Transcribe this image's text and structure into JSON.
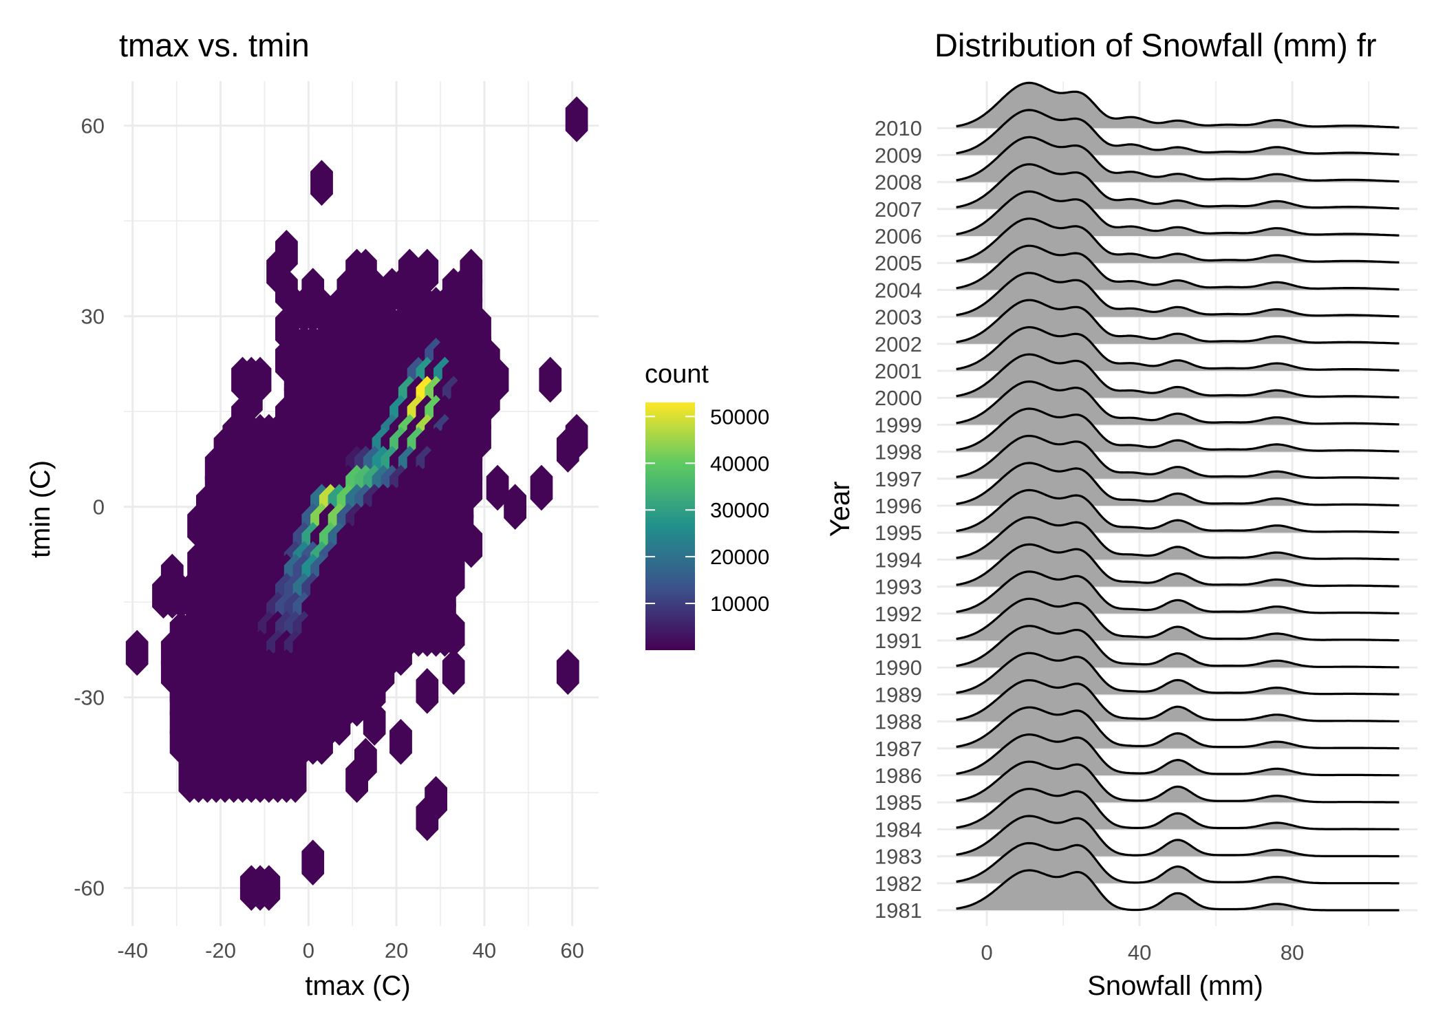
{
  "colors": {
    "background": "#ffffff",
    "grid": "#ebebeb",
    "ridge_fill": "#a6a6a6",
    "ridge_line": "#000000",
    "viridis": [
      "#440154",
      "#3b528b",
      "#21908d",
      "#5dc962",
      "#fde725"
    ]
  },
  "chart_data": [
    {
      "type": "hexbin",
      "title": "tmax vs. tmin",
      "xlabel": "tmax (C)",
      "ylabel": "tmin (C)",
      "xlim": [
        -42,
        66
      ],
      "ylim": [
        -66,
        67
      ],
      "xticks": [
        -40,
        -20,
        0,
        20,
        40,
        60
      ],
      "yticks": [
        -60,
        -30,
        0,
        30,
        60
      ],
      "x_tick_labels": [
        "-40",
        "-20",
        "0",
        "20",
        "40",
        "60"
      ],
      "y_tick_labels": [
        "-60",
        "-30",
        "0",
        "30",
        "60"
      ],
      "grid": true,
      "legend": {
        "title": "count",
        "position": "right",
        "range": [
          0,
          53000
        ],
        "ticks": [
          10000,
          20000,
          30000,
          40000,
          50000
        ],
        "tick_labels": [
          "10000",
          "20000",
          "30000",
          "40000",
          "50000"
        ]
      },
      "hex_width": 5,
      "mask_rows": [
        {
          "y": 61,
          "segments": [
            [
              61,
              61
            ]
          ]
        },
        {
          "y": 51,
          "segments": [
            [
              3,
              3
            ]
          ]
        },
        {
          "y": 40,
          "segments": [
            [
              -5,
              -5
            ]
          ]
        },
        {
          "y": 37,
          "segments": [
            [
              -7,
              -7
            ],
            [
              11,
              13
            ],
            [
              23,
              23
            ],
            [
              27,
              27
            ],
            [
              37,
              37
            ]
          ]
        },
        {
          "y": 34,
          "segments": [
            [
              -5,
              -5
            ],
            [
              1,
              1
            ],
            [
              9,
              15
            ],
            [
              19,
              21
            ],
            [
              25,
              25
            ],
            [
              33,
              37
            ]
          ]
        },
        {
          "y": 31,
          "segments": [
            [
              -3,
              3
            ],
            [
              7,
              17
            ],
            [
              23,
              37
            ]
          ]
        },
        {
          "y": 28,
          "segments": [
            [
              -5,
              -5
            ],
            [
              5,
              39
            ]
          ]
        },
        {
          "y": 25,
          "segments": [
            [
              -3,
              39
            ]
          ]
        },
        {
          "y": 23,
          "segments": [
            [
              -5,
              41
            ]
          ]
        },
        {
          "y": 20,
          "segments": [
            [
              -15,
              -11
            ],
            [
              -3,
              43
            ],
            [
              55,
              55
            ]
          ]
        },
        {
          "y": 17,
          "segments": [
            [
              -13,
              -13
            ],
            [
              -3,
              41
            ]
          ]
        },
        {
          "y": 14,
          "segments": [
            [
              -15,
              -15
            ],
            [
              -5,
              39
            ]
          ]
        },
        {
          "y": 11,
          "segments": [
            [
              -17,
              39
            ],
            [
              61,
              61
            ]
          ]
        },
        {
          "y": 9,
          "segments": [
            [
              -19,
              37
            ],
            [
              59,
              59
            ]
          ]
        },
        {
          "y": 6,
          "segments": [
            [
              -21,
              37
            ]
          ]
        },
        {
          "y": 3,
          "segments": [
            [
              -21,
              37
            ],
            [
              43,
              43
            ],
            [
              53,
              53
            ]
          ]
        },
        {
          "y": 0,
          "segments": [
            [
              -23,
              35
            ],
            [
              47,
              47
            ]
          ]
        },
        {
          "y": -3,
          "segments": [
            [
              -25,
              35
            ]
          ]
        },
        {
          "y": -6,
          "segments": [
            [
              -23,
              33
            ],
            [
              37,
              37
            ]
          ]
        },
        {
          "y": -9,
          "segments": [
            [
              -25,
              33
            ]
          ]
        },
        {
          "y": -11,
          "segments": [
            [
              -31,
              -31
            ],
            [
              -21,
              33
            ]
          ]
        },
        {
          "y": -14,
          "segments": [
            [
              -33,
              -23
            ],
            [
              -21,
              31
            ]
          ]
        },
        {
          "y": -17,
          "segments": [
            [
              -25,
              31
            ]
          ]
        },
        {
          "y": -20,
          "segments": [
            [
              -29,
              33
            ]
          ]
        },
        {
          "y": -23,
          "segments": [
            [
              -39,
              -39
            ],
            [
              -31,
              21
            ]
          ]
        },
        {
          "y": -26,
          "segments": [
            [
              -31,
              17
            ],
            [
              33,
              33
            ],
            [
              59,
              59
            ]
          ]
        },
        {
          "y": -29,
          "segments": [
            [
              -29,
              15
            ],
            [
              27,
              27
            ]
          ]
        },
        {
          "y": -31,
          "segments": [
            [
              -29,
              11
            ]
          ]
        },
        {
          "y": -34,
          "segments": [
            [
              -29,
              7
            ],
            [
              15,
              15
            ]
          ]
        },
        {
          "y": -37,
          "segments": [
            [
              -29,
              3
            ],
            [
              21,
              21
            ]
          ]
        },
        {
          "y": -40,
          "segments": [
            [
              -27,
              -3
            ],
            [
              13,
              13
            ]
          ]
        },
        {
          "y": -43,
          "segments": [
            [
              -27,
              -3
            ],
            [
              11,
              11
            ]
          ]
        },
        {
          "y": -46,
          "segments": [
            [
              29,
              29
            ]
          ]
        },
        {
          "y": -49,
          "segments": [
            [
              27,
              27
            ]
          ]
        },
        {
          "y": -56,
          "segments": [
            [
              1,
              1
            ]
          ]
        },
        {
          "y": -60,
          "segments": [
            [
              -13,
              -9
            ]
          ]
        }
      ],
      "high_count_bins": [
        {
          "x": 27,
          "y": 17,
          "count": 53000
        },
        {
          "x": 25,
          "y": 14,
          "count": 50000
        },
        {
          "x": 27,
          "y": 11,
          "count": 46000
        },
        {
          "x": 23,
          "y": 11,
          "count": 40000
        },
        {
          "x": 25,
          "y": 9,
          "count": 38000
        },
        {
          "x": 21,
          "y": 9,
          "count": 36000
        },
        {
          "x": 19,
          "y": 6,
          "count": 30000
        },
        {
          "x": 15,
          "y": 3,
          "count": 32000
        },
        {
          "x": 13,
          "y": 3,
          "count": 36000
        },
        {
          "x": 11,
          "y": 3,
          "count": 38000
        },
        {
          "x": 9,
          "y": 0,
          "count": 40000
        },
        {
          "x": 5,
          "y": 0,
          "count": 48000
        },
        {
          "x": 7,
          "y": -3,
          "count": 42000
        },
        {
          "x": 3,
          "y": -3,
          "count": 43000
        },
        {
          "x": 5,
          "y": -6,
          "count": 38000
        },
        {
          "x": 1,
          "y": -6,
          "count": 30000
        },
        {
          "x": 3,
          "y": -9,
          "count": 32000
        },
        {
          "x": -1,
          "y": -9,
          "count": 24000
        },
        {
          "x": 1,
          "y": -11,
          "count": 26000
        },
        {
          "x": -3,
          "y": -11,
          "count": 18000
        },
        {
          "x": -1,
          "y": -14,
          "count": 20000
        },
        {
          "x": -5,
          "y": -17,
          "count": 12000
        },
        {
          "x": -3,
          "y": -20,
          "count": 10000
        },
        {
          "x": -1,
          "y": -17,
          "count": 14000
        },
        {
          "x": 29,
          "y": 14,
          "count": 40000
        },
        {
          "x": 29,
          "y": 17,
          "count": 42000
        },
        {
          "x": 31,
          "y": 20,
          "count": 25000
        },
        {
          "x": 27,
          "y": 20,
          "count": 28000
        },
        {
          "x": 25,
          "y": 20,
          "count": 14000
        },
        {
          "x": 29,
          "y": 23,
          "count": 13000
        },
        {
          "x": 23,
          "y": 17,
          "count": 30000
        },
        {
          "x": 21,
          "y": 14,
          "count": 26000
        },
        {
          "x": 19,
          "y": 11,
          "count": 22000
        },
        {
          "x": 17,
          "y": 9,
          "count": 24000
        },
        {
          "x": 23,
          "y": 6,
          "count": 20000
        },
        {
          "x": 17,
          "y": 6,
          "count": 26000
        },
        {
          "x": 15,
          "y": 6,
          "count": 17000
        },
        {
          "x": 19,
          "y": 3,
          "count": 15000
        },
        {
          "x": 17,
          "y": 3,
          "count": 20000
        },
        {
          "x": 13,
          "y": 0,
          "count": 16000
        },
        {
          "x": 11,
          "y": 0,
          "count": 20000
        },
        {
          "x": 7,
          "y": 0,
          "count": 30000
        },
        {
          "x": 3,
          "y": 0,
          "count": 20000
        },
        {
          "x": 9,
          "y": -3,
          "count": 15000
        },
        {
          "x": 1,
          "y": -3,
          "count": 16000
        },
        {
          "x": 7,
          "y": -6,
          "count": 18000
        },
        {
          "x": -1,
          "y": -6,
          "count": 12000
        },
        {
          "x": 5,
          "y": -9,
          "count": 14000
        },
        {
          "x": 1,
          "y": -9,
          "count": 14000
        },
        {
          "x": -3,
          "y": -9,
          "count": 10000
        },
        {
          "x": 3,
          "y": -11,
          "count": 16000
        },
        {
          "x": -1,
          "y": -11,
          "count": 12000
        },
        {
          "x": -5,
          "y": -14,
          "count": 10000
        },
        {
          "x": 1,
          "y": -14,
          "count": 10000
        },
        {
          "x": -3,
          "y": -14,
          "count": 12000
        },
        {
          "x": -7,
          "y": -17,
          "count": 7000
        },
        {
          "x": -3,
          "y": -17,
          "count": 10000
        },
        {
          "x": -5,
          "y": -20,
          "count": 8000
        },
        {
          "x": -1,
          "y": -20,
          "count": 7000
        },
        {
          "x": -7,
          "y": -23,
          "count": 6000
        },
        {
          "x": -3,
          "y": -23,
          "count": 6000
        },
        {
          "x": -9,
          "y": -20,
          "count": 5000
        },
        {
          "x": 33,
          "y": 17,
          "count": 8000
        },
        {
          "x": 31,
          "y": 11,
          "count": 10000
        },
        {
          "x": 27,
          "y": 6,
          "count": 8000
        },
        {
          "x": 21,
          "y": 3,
          "count": 7000
        },
        {
          "x": 13,
          "y": 6,
          "count": 8000
        },
        {
          "x": 11,
          "y": 6,
          "count": 4000
        },
        {
          "x": 15,
          "y": 0,
          "count": 6000
        },
        {
          "x": 11,
          "y": -3,
          "count": 5000
        }
      ]
    },
    {
      "type": "ridgeline",
      "title": "Distribution of Snowfall (mm) fr",
      "xlabel": "Snowfall (mm)",
      "ylabel": "Year",
      "xlim": [
        -13,
        120
      ],
      "xticks": [
        0,
        40,
        80
      ],
      "x_tick_labels": [
        "0",
        "40",
        "80"
      ],
      "x_range": [
        -8,
        108
      ],
      "categories": [
        "1981",
        "1982",
        "1983",
        "1984",
        "1985",
        "1986",
        "1987",
        "1988",
        "1989",
        "1990",
        "1991",
        "1992",
        "1993",
        "1994",
        "1995",
        "1996",
        "1997",
        "1998",
        "1999",
        "2000",
        "2001",
        "2002",
        "2003",
        "2004",
        "2005",
        "2006",
        "2007",
        "2008",
        "2009",
        "2010"
      ],
      "ridge_height_rows": 1.8,
      "peak_summary": {
        "peaks_at_mm": [
          11,
          25,
          38,
          50,
          63,
          76,
          95
        ],
        "first_year_peak_heights": [
          0.82,
          0.62,
          0.0,
          0.35,
          0.02,
          0.13,
          0.0
        ],
        "last_year_peak_heights": [
          0.93,
          0.55,
          0.22,
          0.15,
          0.07,
          0.16,
          0.05
        ]
      },
      "grid": true,
      "legend": "none"
    }
  ]
}
